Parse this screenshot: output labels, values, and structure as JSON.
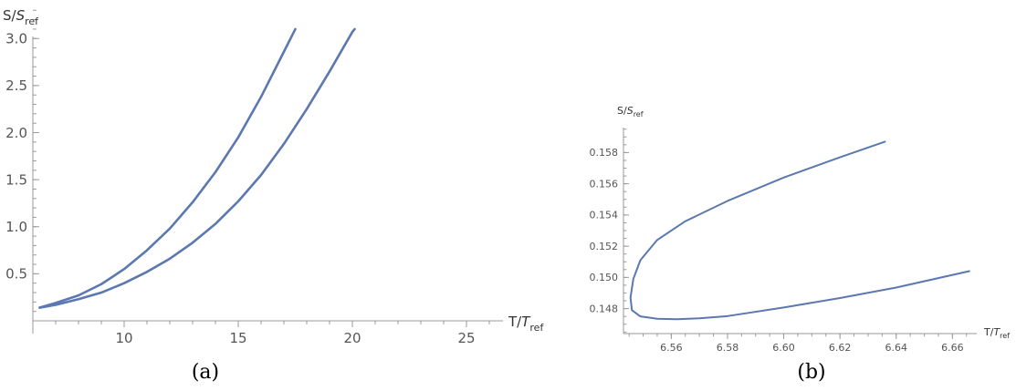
{
  "colors": {
    "series": "#5b78b0",
    "axis": "#999999"
  },
  "chart_data": [
    {
      "type": "line",
      "caption": "(a)",
      "ylabel": {
        "main": "S/",
        "italic": "S",
        "sub": "ref"
      },
      "xlabel": {
        "main": "T/",
        "italic": "T",
        "sub": "ref"
      },
      "xlim": [
        6.0,
        26.0
      ],
      "ylim": [
        0.0,
        3.3
      ],
      "xticks": [
        10,
        15,
        20,
        25
      ],
      "xtick_labels": [
        "10",
        "15",
        "20",
        "25"
      ],
      "yticks": [
        0.5,
        1.0,
        1.5,
        2.0,
        2.5,
        3.0
      ],
      "ytick_labels": [
        "0.5",
        "1.0",
        "1.5",
        "2.0",
        "2.5",
        "3.0"
      ],
      "series": [
        {
          "x": [
            6.3,
            7.0,
            8.0,
            9.0,
            10.0,
            11.0,
            12.0,
            13.0,
            14.0,
            15.0,
            16.0,
            17.0,
            17.5
          ],
          "y": [
            0.14,
            0.19,
            0.27,
            0.39,
            0.55,
            0.75,
            0.98,
            1.26,
            1.58,
            1.95,
            2.38,
            2.86,
            3.1
          ]
        },
        {
          "x": [
            6.3,
            7.0,
            8.0,
            9.0,
            10.0,
            11.0,
            12.0,
            13.0,
            14.0,
            15.0,
            16.0,
            17.0,
            18.0,
            19.0,
            20.0,
            20.1
          ],
          "y": [
            0.14,
            0.17,
            0.23,
            0.3,
            0.4,
            0.52,
            0.66,
            0.83,
            1.03,
            1.27,
            1.55,
            1.88,
            2.25,
            2.65,
            3.07,
            3.1
          ]
        }
      ]
    },
    {
      "type": "line",
      "caption": "(b)",
      "ylabel": {
        "main": "S/",
        "italic": "S",
        "sub": "ref"
      },
      "xlabel": {
        "main": "T/",
        "italic": "T",
        "sub": "ref"
      },
      "xlim": [
        6.543,
        6.668
      ],
      "ylim": [
        0.1464,
        0.1596
      ],
      "xticks": [
        6.56,
        6.58,
        6.6,
        6.62,
        6.64,
        6.66
      ],
      "xtick_labels": [
        "6.56",
        "6.58",
        "6.60",
        "6.62",
        "6.64",
        "6.66"
      ],
      "yticks": [
        0.148,
        0.15,
        0.152,
        0.154,
        0.156,
        0.158
      ],
      "ytick_labels": [
        "0.148",
        "0.150",
        "0.152",
        "0.154",
        "0.156",
        "0.158"
      ],
      "series": [
        {
          "x": [
            6.636,
            6.62,
            6.6,
            6.58,
            6.565,
            6.555,
            6.549,
            6.5465,
            6.5455,
            6.546,
            6.549,
            6.555,
            6.562,
            6.57,
            6.58,
            6.6,
            6.62,
            6.64,
            6.666
          ],
          "y": [
            0.1587,
            0.1577,
            0.1564,
            0.1549,
            0.1536,
            0.1524,
            0.1511,
            0.1499,
            0.1487,
            0.1479,
            0.1475,
            0.14735,
            0.14732,
            0.14738,
            0.14752,
            0.14807,
            0.14868,
            0.14935,
            0.1504
          ]
        }
      ]
    }
  ]
}
